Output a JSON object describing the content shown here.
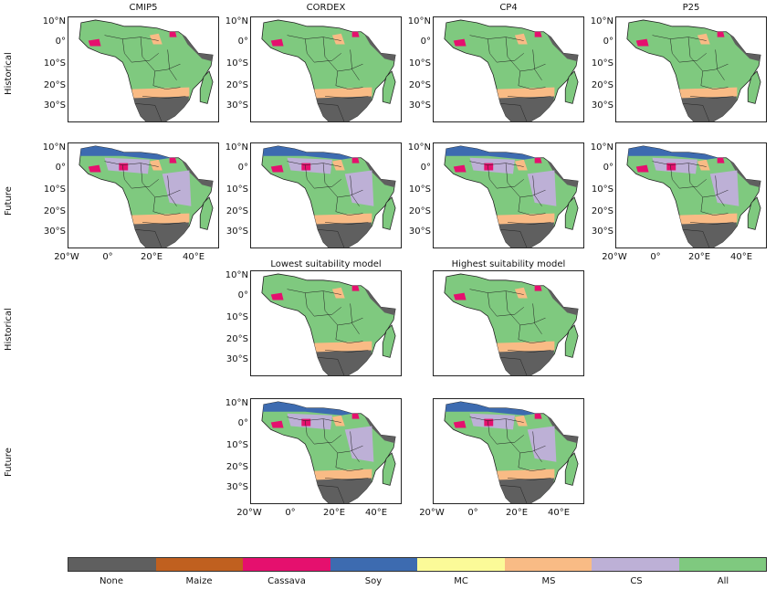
{
  "columns": [
    "CMIP5",
    "CORDEX",
    "CP4",
    "P25"
  ],
  "row_labels": [
    "Historical",
    "Future",
    "Historical",
    "Future"
  ],
  "lower_titles": [
    "Lowest suitability model",
    "Highest suitability model"
  ],
  "lat_ticks": [
    "10°N",
    "0°",
    "10°S",
    "20°S",
    "30°S"
  ],
  "lon_ticks": [
    "20°W",
    "0°",
    "20°E",
    "40°E"
  ],
  "legend": {
    "categories": [
      {
        "name": "None",
        "color": "#5f5f5f"
      },
      {
        "name": "Maize",
        "color": "#c0601f"
      },
      {
        "name": "Cassava",
        "color": "#e5106e"
      },
      {
        "name": "Soy",
        "color": "#3d6bb0"
      },
      {
        "name": "MC",
        "color": "#fbfa98"
      },
      {
        "name": "MS",
        "color": "#f9bb85"
      },
      {
        "name": "CS",
        "color": "#bdb0d6"
      },
      {
        "name": "All",
        "color": "#7fc97f"
      }
    ]
  }
}
